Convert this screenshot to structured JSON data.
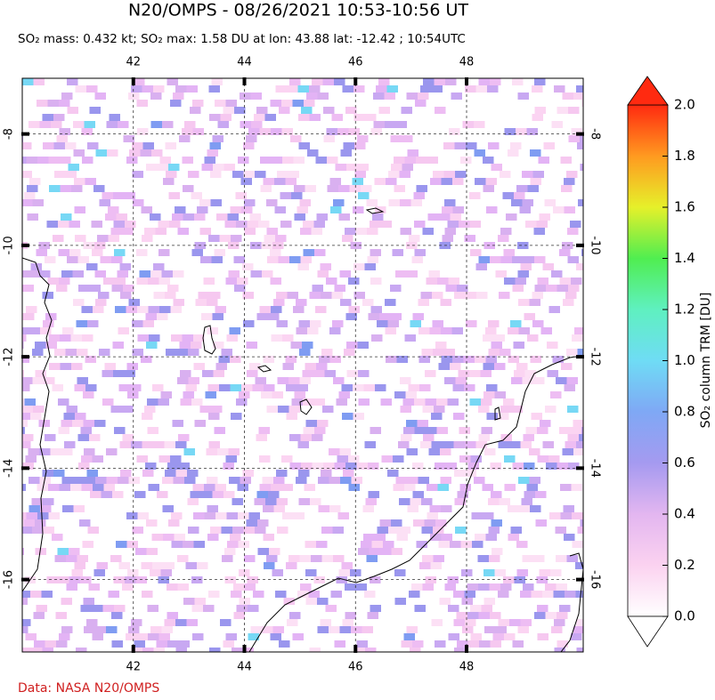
{
  "map": {
    "title": "N20/OMPS - 08/26/2021 10:53-10:56 UT",
    "subtitle": "SO₂ mass: 0.432 kt; SO₂ max: 1.58 DU at lon: 43.88 lat: -12.42 ; 10:54UTC",
    "lonlim": [
      40,
      50.1
    ],
    "latlim": [
      -7,
      -17.3
    ],
    "lonticks": [
      42,
      44,
      46,
      48
    ],
    "latticks": [
      -8,
      -10,
      -12,
      -14,
      -16
    ],
    "colorbar": {
      "label": "SO₂ column TRM [DU]",
      "lim": [
        0,
        2
      ],
      "ticks": [
        {
          "value": 0,
          "label": "0.0"
        },
        {
          "value": 0.2,
          "label": "0.2"
        },
        {
          "value": 0.4,
          "label": "0.4"
        },
        {
          "value": 0.6,
          "label": "0.6"
        },
        {
          "value": 0.8,
          "label": "0.8"
        },
        {
          "value": 1,
          "label": "1.0"
        },
        {
          "value": 1.2,
          "label": "1.2"
        },
        {
          "value": 1.4,
          "label": "1.4"
        },
        {
          "value": 1.6,
          "label": "1.6"
        },
        {
          "value": 1.8,
          "label": "1.8"
        },
        {
          "value": 2,
          "label": "2.0"
        }
      ]
    },
    "credit": "Data: NASA N20/OMPS"
  }
}
